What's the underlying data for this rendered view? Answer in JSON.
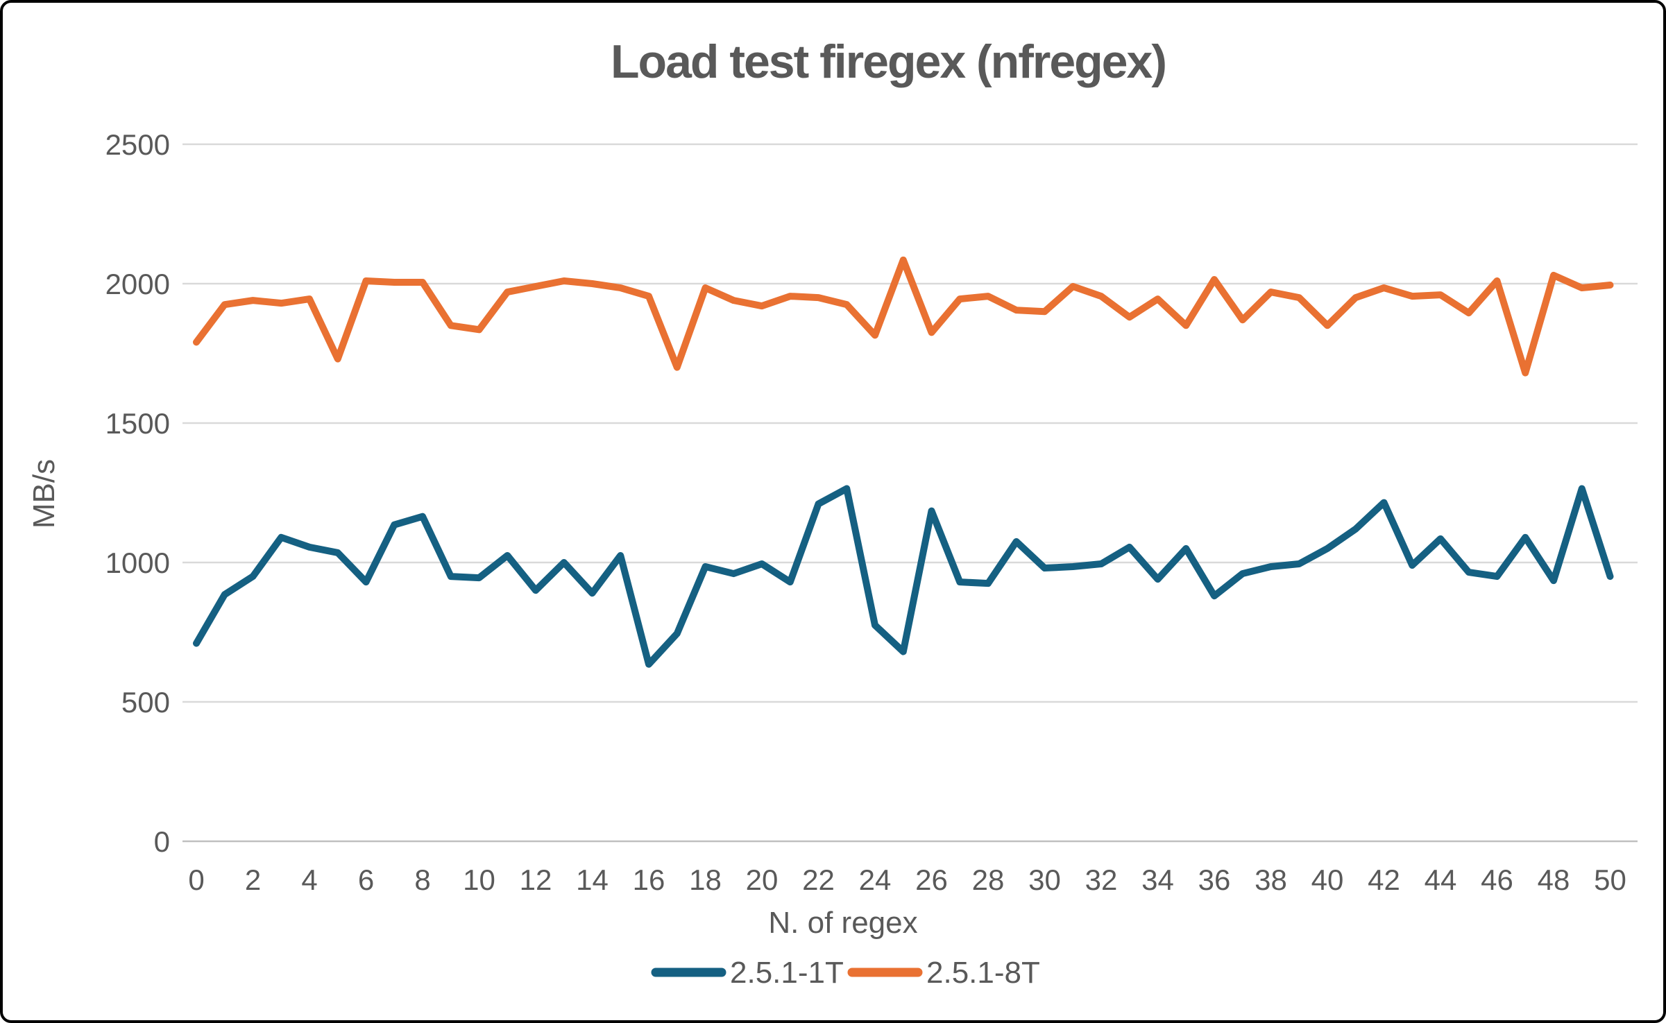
{
  "title": "Load test firegex (nfregex)",
  "y_axis": {
    "label": "MB/s"
  },
  "x_axis": {
    "label": "N. of regex"
  },
  "legend": {
    "position": "bottom",
    "items": [
      {
        "label": "2.5.1-1T",
        "color": "#156082"
      },
      {
        "label": "2.5.1-8T",
        "color": "#E97132"
      }
    ]
  },
  "colors": {
    "series_1T": "#156082",
    "series_8T": "#E97132",
    "text": "#595959",
    "gridline": "#D9D9D9",
    "axis_line": "#BFBFBF",
    "border": "#000000",
    "background": "#FFFFFF"
  },
  "chart_data": {
    "type": "line",
    "title": "Load test firegex (nfregex)",
    "xlabel": "N. of regex",
    "ylabel": "MB/s",
    "ylim": [
      0,
      2500
    ],
    "y_ticks": [
      0,
      500,
      1000,
      1500,
      2000,
      2500
    ],
    "x_tick_min": 0,
    "x_tick_max": 50,
    "x_tick_step": 2,
    "grid": true,
    "legend_position": "bottom",
    "x": [
      0,
      1,
      2,
      3,
      4,
      5,
      6,
      7,
      8,
      9,
      10,
      11,
      12,
      13,
      14,
      15,
      16,
      17,
      18,
      19,
      20,
      21,
      22,
      23,
      24,
      25,
      26,
      27,
      28,
      29,
      30,
      31,
      32,
      33,
      34,
      35,
      36,
      37,
      38,
      39,
      40,
      41,
      42,
      43,
      44,
      45,
      46,
      47,
      48,
      49,
      50
    ],
    "series": [
      {
        "name": "2.5.1-1T",
        "color": "#156082",
        "values": [
          710,
          885,
          950,
          1090,
          1055,
          1035,
          930,
          1135,
          1165,
          950,
          945,
          1025,
          900,
          1000,
          890,
          1025,
          635,
          745,
          985,
          960,
          995,
          930,
          1210,
          1265,
          775,
          680,
          1185,
          930,
          925,
          1075,
          980,
          985,
          995,
          1055,
          940,
          1050,
          880,
          960,
          985,
          995,
          1050,
          1120,
          1215,
          990,
          1085,
          965,
          950,
          1090,
          935,
          1265,
          950
        ]
      },
      {
        "name": "2.5.1-8T",
        "color": "#E97132",
        "values": [
          1790,
          1925,
          1940,
          1930,
          1945,
          1730,
          2010,
          2005,
          2005,
          1850,
          1835,
          1970,
          1990,
          2010,
          2000,
          1985,
          1955,
          1700,
          1985,
          1940,
          1920,
          1955,
          1950,
          1925,
          1815,
          2085,
          1825,
          1945,
          1955,
          1905,
          1900,
          1990,
          1955,
          1880,
          1945,
          1850,
          2015,
          1870,
          1970,
          1950,
          1850,
          1950,
          1985,
          1955,
          1960,
          1895,
          2010,
          1680,
          2030,
          1985,
          1995
        ]
      }
    ]
  }
}
